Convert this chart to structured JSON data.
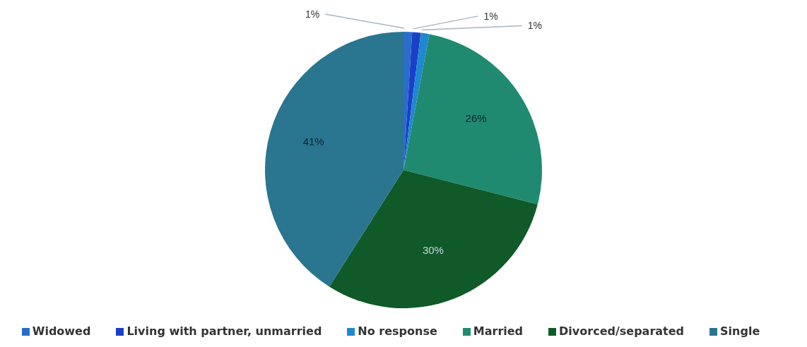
{
  "chart_data": {
    "type": "pie",
    "categories": [
      "Widowed",
      "Living with partner, unmarried",
      "No response",
      "Married",
      "Divorced/separated",
      "Single"
    ],
    "values": [
      1,
      1,
      1,
      26,
      30,
      41
    ],
    "colors": [
      "#2a6dc8",
      "#1a3fc8",
      "#1e88d0",
      "#1f8a70",
      "#0f5a28",
      "#2a7590"
    ],
    "value_labels": [
      "1%",
      "1%",
      "1%",
      "26%",
      "30%",
      "41%"
    ],
    "legend": "bottom"
  }
}
